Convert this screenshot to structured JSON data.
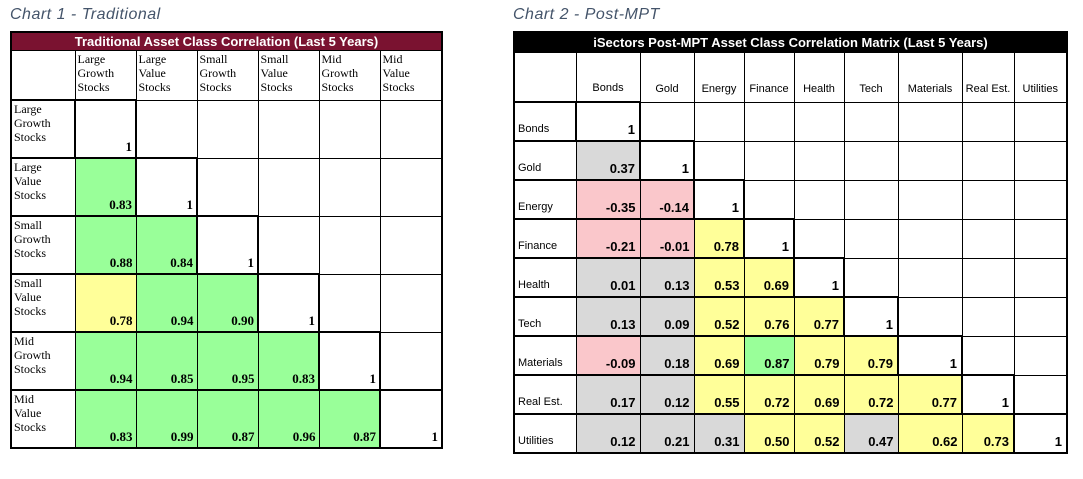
{
  "page": {
    "background": "#FFFFFF"
  },
  "colors": {
    "green": "#99FF99",
    "yellow": "#FFFF99",
    "pink": "#FAC7CB",
    "gray": "#D9D9D9",
    "white": "#FFFFFF",
    "left_header_bg": "#7A1230",
    "right_header_bg": "#000000",
    "title_color": "#44546A",
    "border": "#000000"
  },
  "chart_data": [
    {
      "type": "heatmap",
      "caption": "Chart 1 - Traditional",
      "title": "Traditional Asset Class Correlation (Last 5 Years)",
      "header_bg": "#7A1230",
      "legend_note": "lower-triangle correlation matrix; cell fill encodes correlation strength",
      "columns": [
        "Large\nGrowth\nStocks",
        "Large\nValue\nStocks",
        "Small\nGrowth\nStocks",
        "Small\nValue\nStocks",
        "Mid\nGrowth\nStocks",
        "Mid\nValue\nStocks"
      ],
      "rows": [
        {
          "label": "Large\nGrowth\nStocks",
          "cells": [
            {
              "v": "1",
              "c": "white"
            }
          ]
        },
        {
          "label": "Large\nValue\nStocks",
          "cells": [
            {
              "v": "0.83",
              "c": "green"
            },
            {
              "v": "1",
              "c": "white"
            }
          ]
        },
        {
          "label": "Small\nGrowth\nStocks",
          "cells": [
            {
              "v": "0.88",
              "c": "green"
            },
            {
              "v": "0.84",
              "c": "green"
            },
            {
              "v": "1",
              "c": "white"
            }
          ]
        },
        {
          "label": "Small\nValue\nStocks",
          "cells": [
            {
              "v": "0.78",
              "c": "yellow"
            },
            {
              "v": "0.94",
              "c": "green"
            },
            {
              "v": "0.90",
              "c": "green"
            },
            {
              "v": "1",
              "c": "white"
            }
          ]
        },
        {
          "label": "Mid\nGrowth\nStocks",
          "cells": [
            {
              "v": "0.94",
              "c": "green"
            },
            {
              "v": "0.85",
              "c": "green"
            },
            {
              "v": "0.95",
              "c": "green"
            },
            {
              "v": "0.83",
              "c": "green"
            },
            {
              "v": "1",
              "c": "white"
            }
          ]
        },
        {
          "label": "Mid\nValue\nStocks",
          "cells": [
            {
              "v": "0.83",
              "c": "green"
            },
            {
              "v": "0.99",
              "c": "green"
            },
            {
              "v": "0.87",
              "c": "green"
            },
            {
              "v": "0.96",
              "c": "green"
            },
            {
              "v": "0.87",
              "c": "green"
            },
            {
              "v": "1",
              "c": "white"
            }
          ]
        }
      ]
    },
    {
      "type": "heatmap",
      "caption": "Chart 2 - Post-MPT",
      "title": "iSectors Post-MPT Asset Class Correlation Matrix (Last 5 Years)",
      "header_bg": "#000000",
      "legend_note": "lower-triangle correlation matrix; cell fill encodes correlation strength",
      "columns": [
        "Bonds",
        "Gold",
        "Energy",
        "Finance",
        "Health",
        "Tech",
        "Materials",
        "Real Est.",
        "Utilities"
      ],
      "rows": [
        {
          "label": "Bonds",
          "cells": [
            {
              "v": "1",
              "c": "white"
            }
          ]
        },
        {
          "label": "Gold",
          "cells": [
            {
              "v": "0.37",
              "c": "gray"
            },
            {
              "v": "1",
              "c": "white"
            }
          ]
        },
        {
          "label": "Energy",
          "cells": [
            {
              "v": "-0.35",
              "c": "pink"
            },
            {
              "v": "-0.14",
              "c": "pink"
            },
            {
              "v": "1",
              "c": "white"
            }
          ]
        },
        {
          "label": "Finance",
          "cells": [
            {
              "v": "-0.21",
              "c": "pink"
            },
            {
              "v": "-0.01",
              "c": "pink"
            },
            {
              "v": "0.78",
              "c": "yellow"
            },
            {
              "v": "1",
              "c": "white"
            }
          ]
        },
        {
          "label": "Health",
          "cells": [
            {
              "v": "0.01",
              "c": "gray"
            },
            {
              "v": "0.13",
              "c": "gray"
            },
            {
              "v": "0.53",
              "c": "yellow"
            },
            {
              "v": "0.69",
              "c": "yellow"
            },
            {
              "v": "1",
              "c": "white"
            }
          ]
        },
        {
          "label": "Tech",
          "cells": [
            {
              "v": "0.13",
              "c": "gray"
            },
            {
              "v": "0.09",
              "c": "gray"
            },
            {
              "v": "0.52",
              "c": "yellow"
            },
            {
              "v": "0.76",
              "c": "yellow"
            },
            {
              "v": "0.77",
              "c": "yellow"
            },
            {
              "v": "1",
              "c": "white"
            }
          ]
        },
        {
          "label": "Materials",
          "cells": [
            {
              "v": "-0.09",
              "c": "pink"
            },
            {
              "v": "0.18",
              "c": "gray"
            },
            {
              "v": "0.69",
              "c": "yellow"
            },
            {
              "v": "0.87",
              "c": "green"
            },
            {
              "v": "0.79",
              "c": "yellow"
            },
            {
              "v": "0.79",
              "c": "yellow"
            },
            {
              "v": "1",
              "c": "white"
            }
          ]
        },
        {
          "label": "Real Est.",
          "cells": [
            {
              "v": "0.17",
              "c": "gray"
            },
            {
              "v": "0.12",
              "c": "gray"
            },
            {
              "v": "0.55",
              "c": "yellow"
            },
            {
              "v": "0.72",
              "c": "yellow"
            },
            {
              "v": "0.69",
              "c": "yellow"
            },
            {
              "v": "0.72",
              "c": "yellow"
            },
            {
              "v": "0.77",
              "c": "yellow"
            },
            {
              "v": "1",
              "c": "white"
            }
          ]
        },
        {
          "label": "Utilities",
          "cells": [
            {
              "v": "0.12",
              "c": "gray"
            },
            {
              "v": "0.21",
              "c": "gray"
            },
            {
              "v": "0.31",
              "c": "gray"
            },
            {
              "v": "0.50",
              "c": "yellow"
            },
            {
              "v": "0.52",
              "c": "yellow"
            },
            {
              "v": "0.47",
              "c": "gray"
            },
            {
              "v": "0.62",
              "c": "yellow"
            },
            {
              "v": "0.73",
              "c": "yellow"
            },
            {
              "v": "1",
              "c": "white"
            }
          ]
        }
      ]
    }
  ]
}
